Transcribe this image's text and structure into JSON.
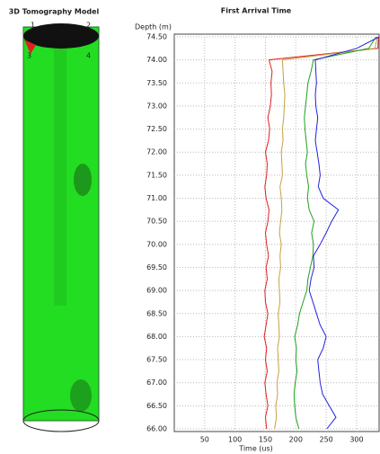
{
  "model": {
    "title": "3D Tomography Model",
    "labels": [
      "1",
      "2",
      "3",
      "4"
    ]
  },
  "chart_data": {
    "type": "line",
    "title": "First Arrival Time",
    "y_label": "Depth (m)",
    "x_label": "Time (us)",
    "depth": [
      66.0,
      66.25,
      66.5,
      66.75,
      67.0,
      67.25,
      67.5,
      67.75,
      68.0,
      68.25,
      68.5,
      68.75,
      69.0,
      69.25,
      69.5,
      69.75,
      70.0,
      70.25,
      70.5,
      70.75,
      71.0,
      71.25,
      71.5,
      71.75,
      72.0,
      72.25,
      72.5,
      72.75,
      73.0,
      73.25,
      73.5,
      73.75,
      74.0,
      74.25,
      74.5
    ],
    "series": [
      {
        "color": "#e02020",
        "values": [
          152,
          150,
          154,
          151,
          149,
          153,
          150,
          152,
          148,
          151,
          154,
          150,
          149,
          153,
          151,
          155,
          152,
          150,
          154,
          156,
          151,
          149,
          152,
          153,
          150,
          155,
          157,
          154,
          158,
          160,
          159,
          161,
          156,
          335,
          336
        ]
      },
      {
        "color": "#c8a040",
        "values": [
          165,
          168,
          167,
          170,
          169,
          172,
          171,
          170,
          173,
          172,
          171,
          174,
          173,
          172,
          175,
          174,
          176,
          173,
          175,
          177,
          176,
          174,
          178,
          177,
          176,
          179,
          178,
          180,
          181,
          182,
          180,
          179,
          178,
          330,
          334
        ]
      },
      {
        "color": "#20a020",
        "values": [
          205,
          200,
          198,
          197,
          199,
          202,
          200,
          201,
          198,
          203,
          206,
          212,
          218,
          220,
          224,
          228,
          229,
          226,
          230,
          222,
          219,
          221,
          218,
          216,
          219,
          217,
          215,
          214,
          216,
          218,
          220,
          225,
          229,
          320,
          332
        ]
      },
      {
        "color": "#2020e0",
        "values": [
          251,
          266,
          255,
          244,
          240,
          238,
          236,
          245,
          250,
          240,
          234,
          228,
          222,
          225,
          230,
          229,
          240,
          250,
          259,
          270,
          245,
          237,
          240,
          238,
          235,
          232,
          234,
          236,
          233,
          232,
          234,
          233,
          232,
          300,
          337
        ]
      }
    ],
    "xlim": [
      0,
      337
    ],
    "ylim": [
      66,
      74.5
    ],
    "xticks": [
      50,
      100,
      150,
      200,
      250,
      300
    ],
    "yticks": [
      {
        "value": 66,
        "label": "66.00"
      },
      {
        "value": 66.5,
        "label": "66.50"
      },
      {
        "value": 67,
        "label": "67.00"
      },
      {
        "value": 67.5,
        "label": "67.50"
      },
      {
        "value": 68,
        "label": "68.00"
      },
      {
        "value": 68.5,
        "label": "68.50"
      },
      {
        "value": 69,
        "label": "69.00"
      },
      {
        "value": 69.5,
        "label": "69.50"
      },
      {
        "value": 70,
        "label": "70.00"
      },
      {
        "value": 70.5,
        "label": "70.50"
      },
      {
        "value": 71,
        "label": "71.00"
      },
      {
        "value": 71.5,
        "label": "71.50"
      },
      {
        "value": 72,
        "label": "72.00"
      },
      {
        "value": 72.5,
        "label": "72.50"
      },
      {
        "value": 73,
        "label": "73.00"
      },
      {
        "value": 73.5,
        "label": "73.50"
      },
      {
        "value": 74,
        "label": "74.00"
      },
      {
        "value": 74.5,
        "label": "74.50"
      }
    ],
    "grid": true
  }
}
